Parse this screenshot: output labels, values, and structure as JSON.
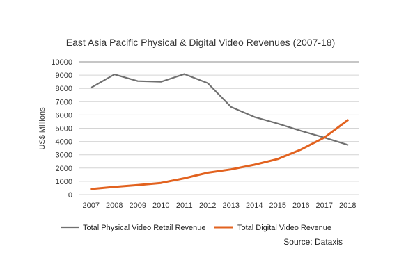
{
  "chart_data": {
    "type": "line",
    "title": "East Asia Pacific Physical & Digital Video Revenues (2007-18)",
    "xlabel": "",
    "ylabel": "US$ Millions",
    "categories": [
      "2007",
      "2008",
      "2009",
      "2010",
      "2011",
      "2012",
      "2013",
      "2014",
      "2015",
      "2016",
      "2017",
      "2018"
    ],
    "ylim": [
      0,
      10000
    ],
    "yticks": [
      0,
      1000,
      2000,
      3000,
      4000,
      5000,
      6000,
      7000,
      8000,
      9000,
      10000
    ],
    "grid": false,
    "legend_position": "bottom",
    "series": [
      {
        "name": "Total Physical Video Retail Revenue",
        "color": "#707070",
        "values": [
          8050,
          9050,
          8550,
          8500,
          9080,
          8400,
          6600,
          5850,
          5350,
          4800,
          4300,
          3750
        ]
      },
      {
        "name": "Total Digital Video Revenue",
        "color": "#e2621f",
        "values": [
          420,
          580,
          720,
          880,
          1230,
          1650,
          1900,
          2250,
          2680,
          3400,
          4300,
          5600
        ]
      }
    ],
    "source": "Source: Dataxis"
  }
}
